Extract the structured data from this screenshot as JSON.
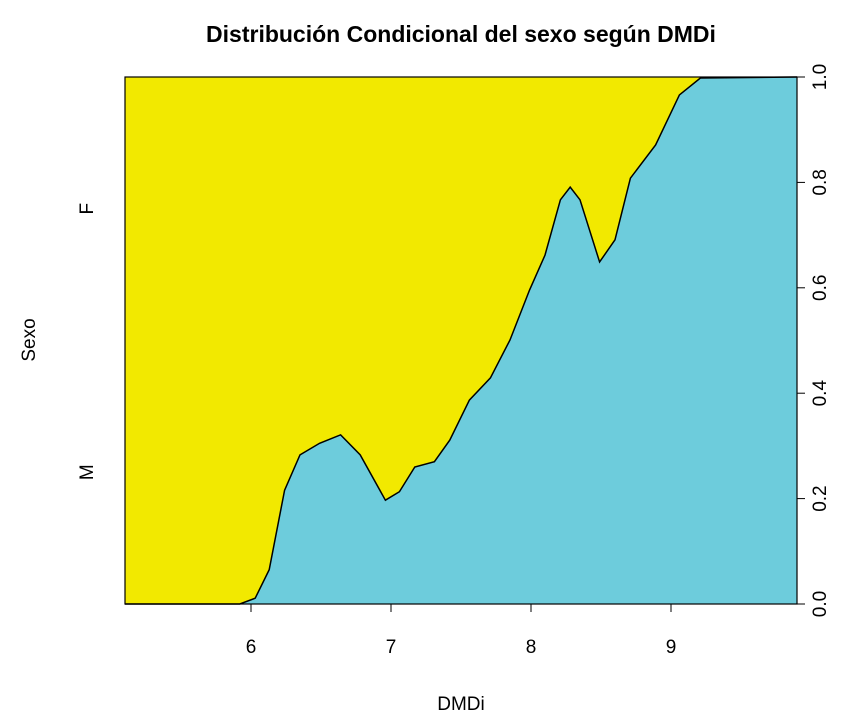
{
  "chart_data": {
    "type": "cdplot",
    "title": "Distribución Condicional del sexo según DMDi",
    "x_label": "DMDi",
    "y_label": "Sexo",
    "levels": [
      {
        "name": "M",
        "color": "#6dccdc"
      },
      {
        "name": "F",
        "color": "#f2e900"
      }
    ],
    "x": [
      5.1,
      5.92,
      6.03,
      6.13,
      6.24,
      6.35,
      6.49,
      6.64,
      6.78,
      6.96,
      7.06,
      7.17,
      7.31,
      7.42,
      7.56,
      7.71,
      7.85,
      7.99,
      8.1,
      8.21,
      8.28,
      8.35,
      8.49,
      8.6,
      8.71,
      8.89,
      9.06,
      9.21,
      9.9
    ],
    "values": [
      0,
      0,
      0.011,
      0.065,
      0.216,
      0.283,
      0.305,
      0.321,
      0.283,
      0.197,
      0.213,
      0.26,
      0.27,
      0.311,
      0.387,
      0.429,
      0.501,
      0.596,
      0.662,
      0.767,
      0.791,
      0.767,
      0.649,
      0.691,
      0.808,
      0.871,
      0.966,
      0.998,
      1.0
    ],
    "xlim": [
      5.1,
      9.9
    ],
    "xticks": [
      6,
      7,
      8,
      9
    ],
    "ylim": [
      0,
      1
    ],
    "yticks": [
      {
        "value": 0,
        "label": "0.0"
      },
      0.2,
      0.4,
      0.6,
      0.8,
      {
        "value": 1,
        "label": "1.0"
      }
    ]
  }
}
